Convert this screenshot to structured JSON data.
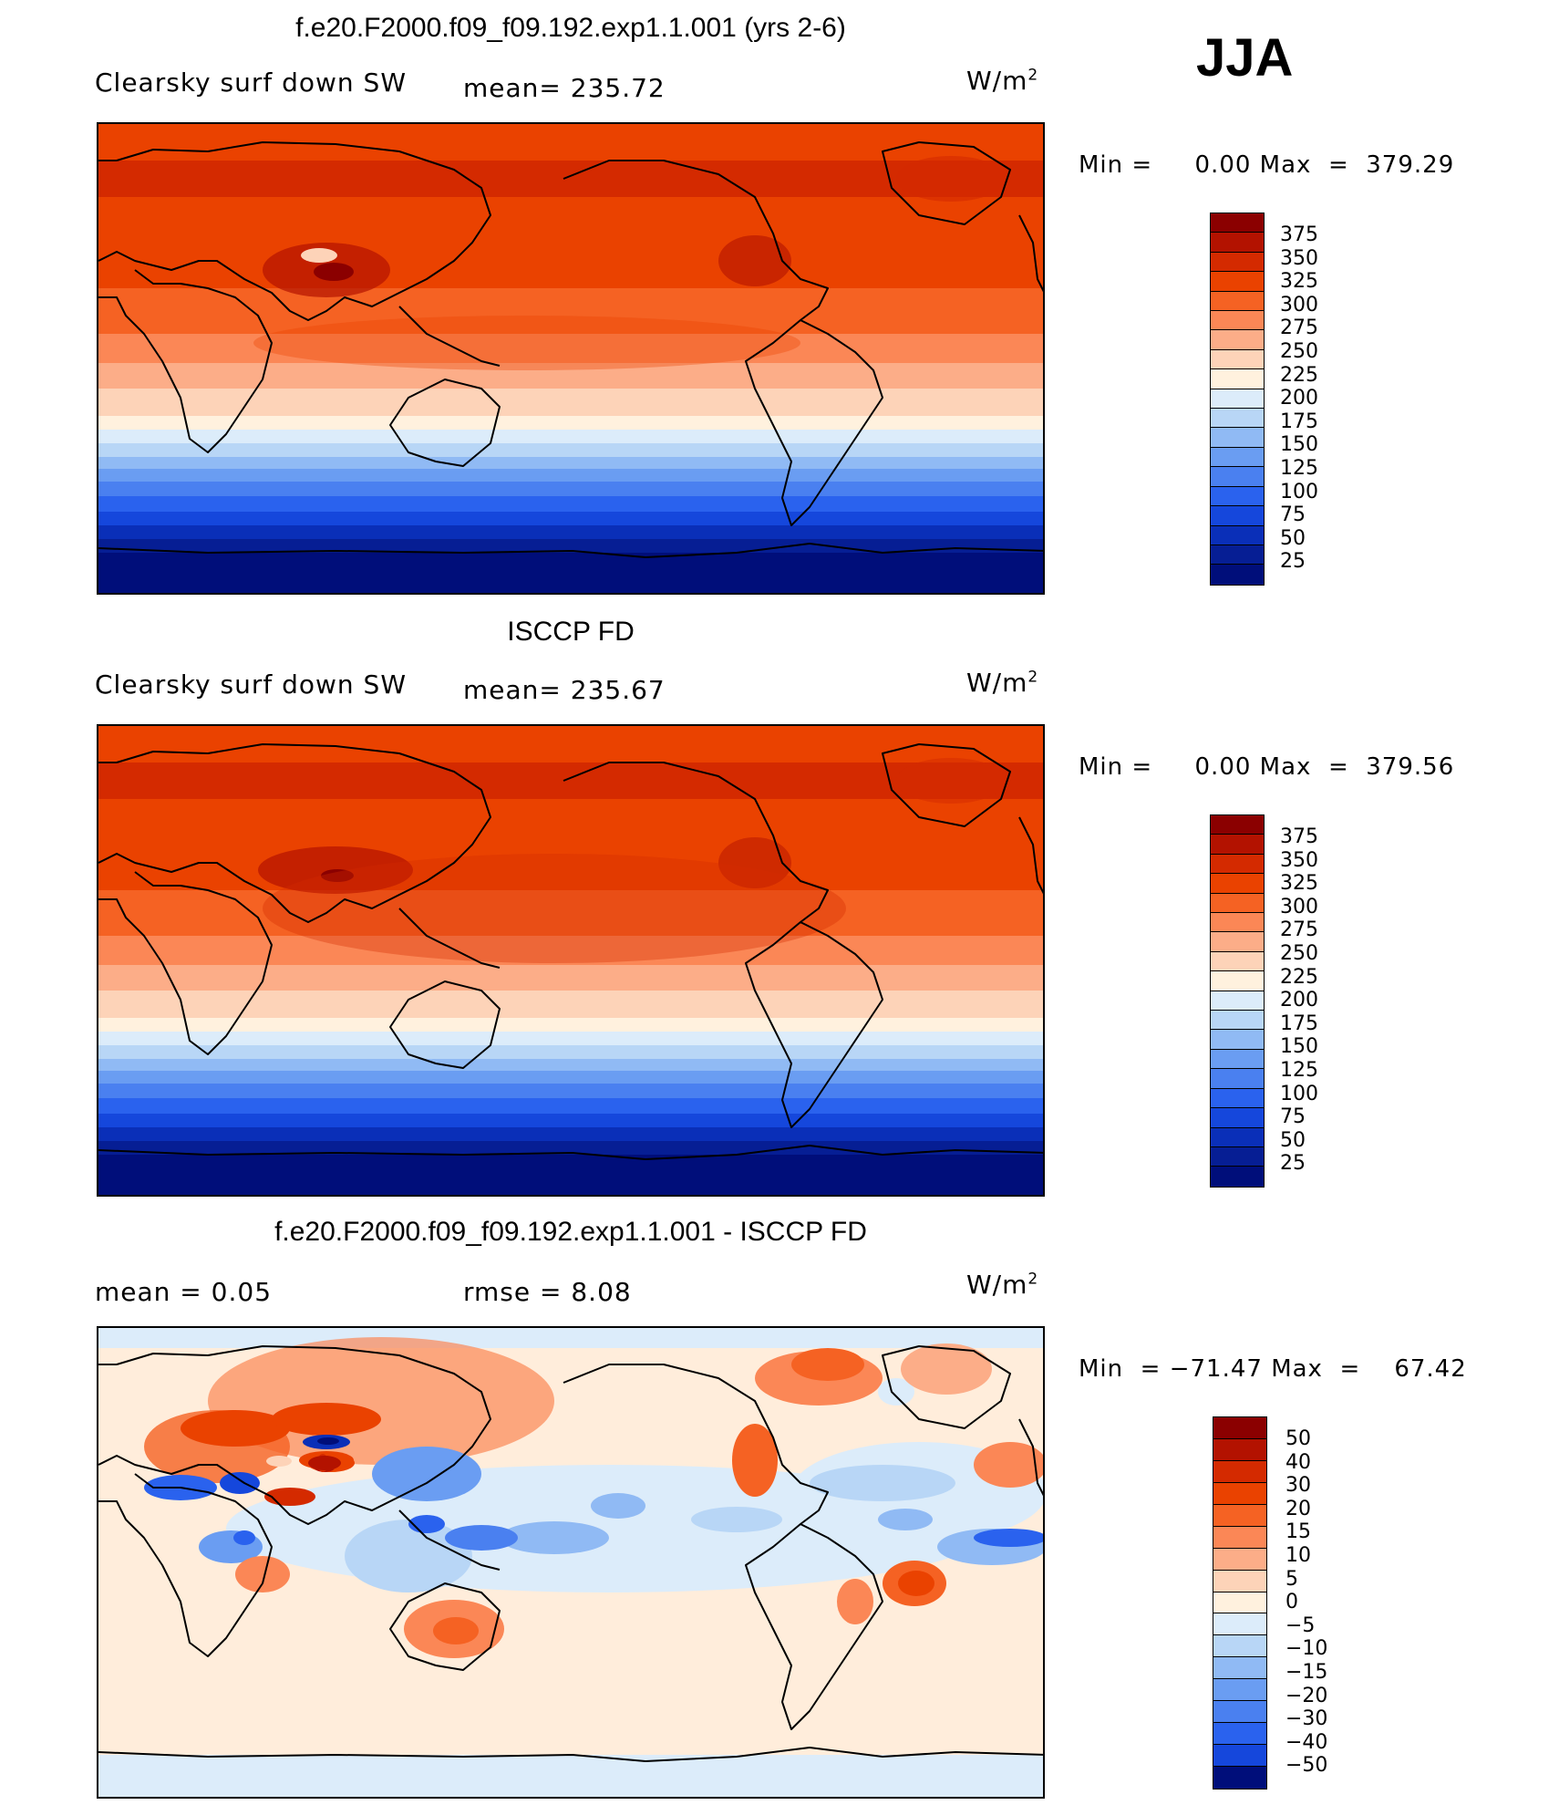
{
  "season": "JJA",
  "panels": [
    {
      "title": "f.e20.F2000.f09_f09.192.exp1.1.001 (yrs 2-6)",
      "left_label": "Clearsky surf down SW",
      "mid_label": "mean= 235.72",
      "units": "W/m",
      "units_sup": "2",
      "minmax": "Min =     0.00 Max  =  379.29"
    },
    {
      "title": "ISCCP FD",
      "left_label": "Clearsky surf down SW",
      "mid_label": "mean= 235.67",
      "units": "W/m",
      "units_sup": "2",
      "minmax": "Min =     0.00 Max  =  379.56"
    },
    {
      "title": "f.e20.F2000.f09_f09.192.exp1.1.001 - ISCCP FD",
      "left_label": "mean  =     0.05",
      "mid_label": "rmse  =     8.08",
      "units": "W/m",
      "units_sup": "2",
      "minmax": "Min  = −71.47 Max  =    67.42"
    }
  ],
  "colorbar_abs": {
    "labels": [
      "375",
      "350",
      "325",
      "300",
      "275",
      "250",
      "225",
      "200",
      "175",
      "150",
      "125",
      "100",
      "75",
      "50",
      "25"
    ],
    "colors": [
      "#8b0000",
      "#b31200",
      "#d42a00",
      "#ea4200",
      "#f56223",
      "#fb8756",
      "#fcad88",
      "#fdd3b8",
      "#fff1de",
      "#dcecfa",
      "#b8d6f6",
      "#90baf4",
      "#6a9df2",
      "#4a80f0",
      "#2a62ee",
      "#1547dc",
      "#0a2fb8",
      "#061e94",
      "#000e7a"
    ]
  },
  "colorbar_diff": {
    "labels": [
      "50",
      "40",
      "30",
      "20",
      "15",
      "10",
      "5",
      "0",
      "−5",
      "−10",
      "−15",
      "−20",
      "−30",
      "−40",
      "−50"
    ],
    "colors": [
      "#8b0000",
      "#b31200",
      "#d42a00",
      "#ea4200",
      "#f56223",
      "#fb8756",
      "#fcad88",
      "#fdd3b8",
      "#fff1de",
      "#dcecfa",
      "#b8d6f6",
      "#90baf4",
      "#6a9df2",
      "#4a80f0",
      "#2a62ee",
      "#1547dc",
      "#000e7a"
    ]
  }
}
